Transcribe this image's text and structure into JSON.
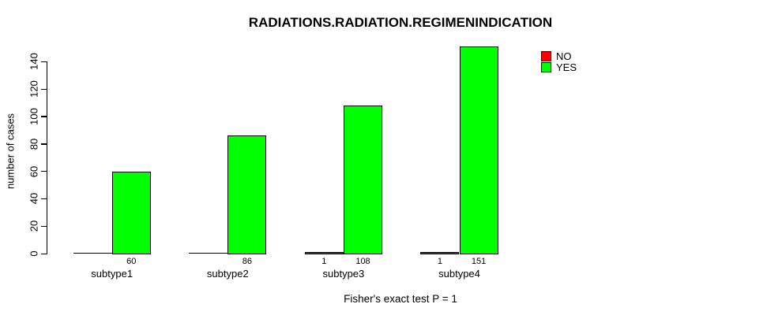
{
  "chart_data": {
    "type": "bar",
    "title": "RADIATIONS.RADIATION.REGIMENINDICATION",
    "xlabel": "Fisher's exact test P = 1",
    "ylabel": "number of cases",
    "categories": [
      "subtype1",
      "subtype2",
      "subtype3",
      "subtype4"
    ],
    "series": [
      {
        "name": "NO",
        "color": "#FF0000",
        "values": [
          0,
          0,
          1,
          1
        ]
      },
      {
        "name": "YES",
        "color": "#00FF00",
        "values": [
          60,
          86,
          108,
          151
        ]
      }
    ],
    "bar_value_labels": {
      "NO": [
        "",
        "",
        "1",
        "1"
      ],
      "YES": [
        "60",
        "86",
        "108",
        "151"
      ]
    },
    "yticks": [
      0,
      20,
      40,
      60,
      80,
      100,
      120,
      140
    ],
    "ylim": [
      0,
      151
    ],
    "grid": false,
    "legend": {
      "position": "top-right",
      "entries": [
        "NO",
        "YES"
      ]
    }
  }
}
